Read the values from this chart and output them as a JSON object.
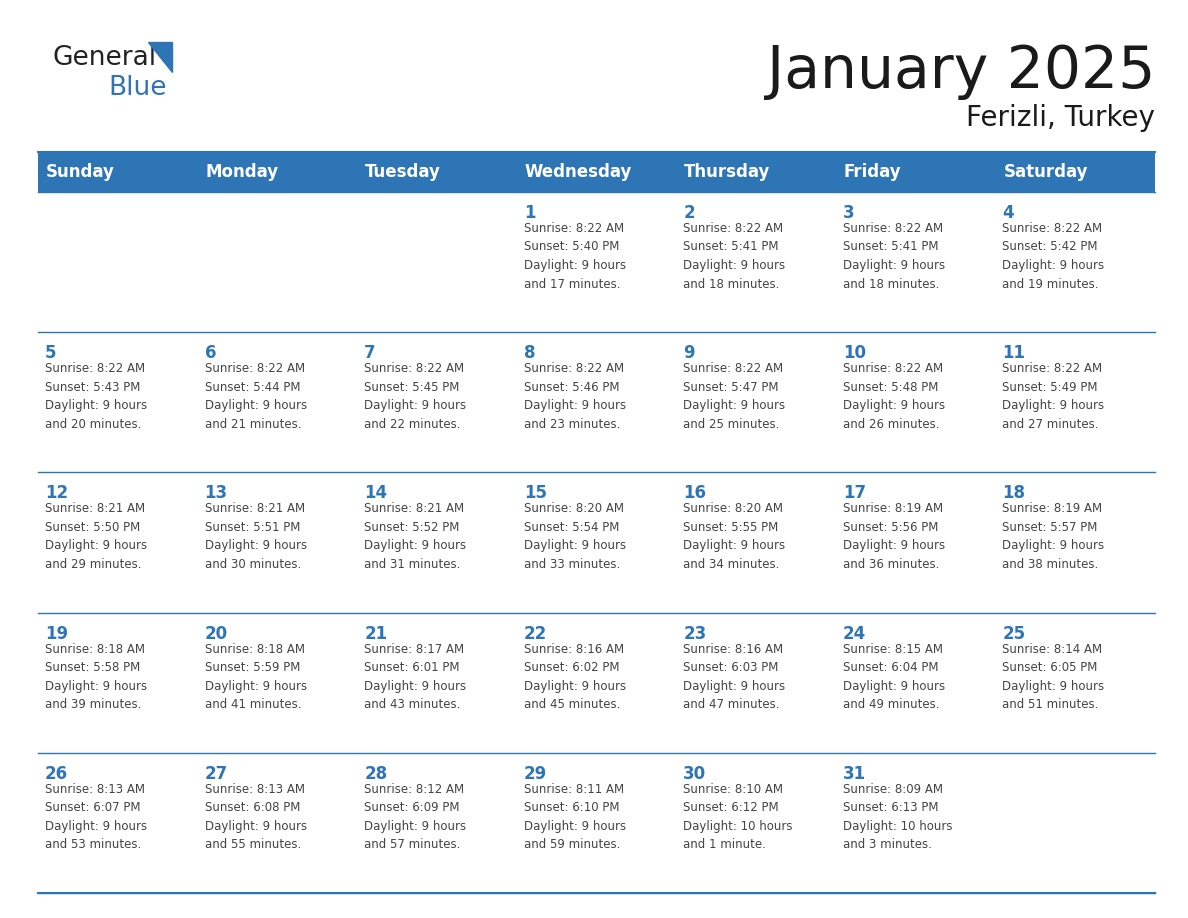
{
  "title": "January 2025",
  "subtitle": "Ferizli, Turkey",
  "header_color": "#2e75b6",
  "header_text_color": "#ffffff",
  "cell_bg_color": "#ffffff",
  "border_color": "#2e75b6",
  "border_color_light": "#a0b8d8",
  "day_names": [
    "Sunday",
    "Monday",
    "Tuesday",
    "Wednesday",
    "Thursday",
    "Friday",
    "Saturday"
  ],
  "title_color": "#1a1a1a",
  "day_number_color": "#2e75b6",
  "cell_text_color": "#444444",
  "calendar_data": [
    [
      {
        "day": "",
        "info": ""
      },
      {
        "day": "",
        "info": ""
      },
      {
        "day": "",
        "info": ""
      },
      {
        "day": "1",
        "info": "Sunrise: 8:22 AM\nSunset: 5:40 PM\nDaylight: 9 hours\nand 17 minutes."
      },
      {
        "day": "2",
        "info": "Sunrise: 8:22 AM\nSunset: 5:41 PM\nDaylight: 9 hours\nand 18 minutes."
      },
      {
        "day": "3",
        "info": "Sunrise: 8:22 AM\nSunset: 5:41 PM\nDaylight: 9 hours\nand 18 minutes."
      },
      {
        "day": "4",
        "info": "Sunrise: 8:22 AM\nSunset: 5:42 PM\nDaylight: 9 hours\nand 19 minutes."
      }
    ],
    [
      {
        "day": "5",
        "info": "Sunrise: 8:22 AM\nSunset: 5:43 PM\nDaylight: 9 hours\nand 20 minutes."
      },
      {
        "day": "6",
        "info": "Sunrise: 8:22 AM\nSunset: 5:44 PM\nDaylight: 9 hours\nand 21 minutes."
      },
      {
        "day": "7",
        "info": "Sunrise: 8:22 AM\nSunset: 5:45 PM\nDaylight: 9 hours\nand 22 minutes."
      },
      {
        "day": "8",
        "info": "Sunrise: 8:22 AM\nSunset: 5:46 PM\nDaylight: 9 hours\nand 23 minutes."
      },
      {
        "day": "9",
        "info": "Sunrise: 8:22 AM\nSunset: 5:47 PM\nDaylight: 9 hours\nand 25 minutes."
      },
      {
        "day": "10",
        "info": "Sunrise: 8:22 AM\nSunset: 5:48 PM\nDaylight: 9 hours\nand 26 minutes."
      },
      {
        "day": "11",
        "info": "Sunrise: 8:22 AM\nSunset: 5:49 PM\nDaylight: 9 hours\nand 27 minutes."
      }
    ],
    [
      {
        "day": "12",
        "info": "Sunrise: 8:21 AM\nSunset: 5:50 PM\nDaylight: 9 hours\nand 29 minutes."
      },
      {
        "day": "13",
        "info": "Sunrise: 8:21 AM\nSunset: 5:51 PM\nDaylight: 9 hours\nand 30 minutes."
      },
      {
        "day": "14",
        "info": "Sunrise: 8:21 AM\nSunset: 5:52 PM\nDaylight: 9 hours\nand 31 minutes."
      },
      {
        "day": "15",
        "info": "Sunrise: 8:20 AM\nSunset: 5:54 PM\nDaylight: 9 hours\nand 33 minutes."
      },
      {
        "day": "16",
        "info": "Sunrise: 8:20 AM\nSunset: 5:55 PM\nDaylight: 9 hours\nand 34 minutes."
      },
      {
        "day": "17",
        "info": "Sunrise: 8:19 AM\nSunset: 5:56 PM\nDaylight: 9 hours\nand 36 minutes."
      },
      {
        "day": "18",
        "info": "Sunrise: 8:19 AM\nSunset: 5:57 PM\nDaylight: 9 hours\nand 38 minutes."
      }
    ],
    [
      {
        "day": "19",
        "info": "Sunrise: 8:18 AM\nSunset: 5:58 PM\nDaylight: 9 hours\nand 39 minutes."
      },
      {
        "day": "20",
        "info": "Sunrise: 8:18 AM\nSunset: 5:59 PM\nDaylight: 9 hours\nand 41 minutes."
      },
      {
        "day": "21",
        "info": "Sunrise: 8:17 AM\nSunset: 6:01 PM\nDaylight: 9 hours\nand 43 minutes."
      },
      {
        "day": "22",
        "info": "Sunrise: 8:16 AM\nSunset: 6:02 PM\nDaylight: 9 hours\nand 45 minutes."
      },
      {
        "day": "23",
        "info": "Sunrise: 8:16 AM\nSunset: 6:03 PM\nDaylight: 9 hours\nand 47 minutes."
      },
      {
        "day": "24",
        "info": "Sunrise: 8:15 AM\nSunset: 6:04 PM\nDaylight: 9 hours\nand 49 minutes."
      },
      {
        "day": "25",
        "info": "Sunrise: 8:14 AM\nSunset: 6:05 PM\nDaylight: 9 hours\nand 51 minutes."
      }
    ],
    [
      {
        "day": "26",
        "info": "Sunrise: 8:13 AM\nSunset: 6:07 PM\nDaylight: 9 hours\nand 53 minutes."
      },
      {
        "day": "27",
        "info": "Sunrise: 8:13 AM\nSunset: 6:08 PM\nDaylight: 9 hours\nand 55 minutes."
      },
      {
        "day": "28",
        "info": "Sunrise: 8:12 AM\nSunset: 6:09 PM\nDaylight: 9 hours\nand 57 minutes."
      },
      {
        "day": "29",
        "info": "Sunrise: 8:11 AM\nSunset: 6:10 PM\nDaylight: 9 hours\nand 59 minutes."
      },
      {
        "day": "30",
        "info": "Sunrise: 8:10 AM\nSunset: 6:12 PM\nDaylight: 10 hours\nand 1 minute."
      },
      {
        "day": "31",
        "info": "Sunrise: 8:09 AM\nSunset: 6:13 PM\nDaylight: 10 hours\nand 3 minutes."
      },
      {
        "day": "",
        "info": ""
      }
    ]
  ],
  "logo_general_color": "#222222",
  "logo_blue_color": "#2e75b6",
  "figsize": [
    11.88,
    9.18
  ],
  "dpi": 100
}
